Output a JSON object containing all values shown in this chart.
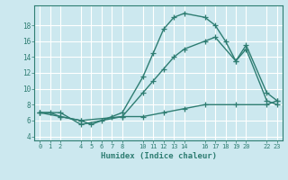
{
  "xlabel": "Humidex (Indice chaleur)",
  "bg_color": "#cce8ef",
  "grid_color": "#ffffff",
  "line_color": "#2e7d72",
  "line1_x": [
    0,
    1,
    2,
    4,
    5,
    6,
    7,
    8,
    10,
    11,
    12,
    13,
    14,
    16,
    17,
    18,
    19,
    20,
    22,
    23
  ],
  "line1_y": [
    7.0,
    7.0,
    6.5,
    6.0,
    5.5,
    6.0,
    6.5,
    7.0,
    11.5,
    14.5,
    17.5,
    19.0,
    19.5,
    19.0,
    18.0,
    16.0,
    13.5,
    15.5,
    9.5,
    8.5
  ],
  "line2_x": [
    0,
    2,
    4,
    8,
    10,
    11,
    12,
    13,
    14,
    16,
    17,
    19,
    20,
    22,
    23
  ],
  "line2_y": [
    7.0,
    6.5,
    6.0,
    6.5,
    9.5,
    11.0,
    12.5,
    14.0,
    15.0,
    16.0,
    16.5,
    13.5,
    15.0,
    8.5,
    8.0
  ],
  "line3_x": [
    0,
    2,
    4,
    8,
    10,
    12,
    14,
    16,
    19,
    22,
    23
  ],
  "line3_y": [
    7.0,
    7.0,
    5.5,
    6.5,
    6.5,
    7.0,
    7.5,
    8.0,
    8.0,
    8.0,
    8.5
  ],
  "xlim": [
    -0.5,
    23.5
  ],
  "ylim": [
    3.5,
    20.5
  ],
  "xticks": [
    0,
    1,
    2,
    4,
    5,
    6,
    7,
    8,
    10,
    11,
    12,
    13,
    14,
    16,
    17,
    18,
    19,
    20,
    22,
    23
  ],
  "yticks": [
    4,
    6,
    8,
    10,
    12,
    14,
    16,
    18
  ],
  "xtick_fontsize": 5.0,
  "ytick_fontsize": 5.5,
  "xlabel_fontsize": 6.5
}
